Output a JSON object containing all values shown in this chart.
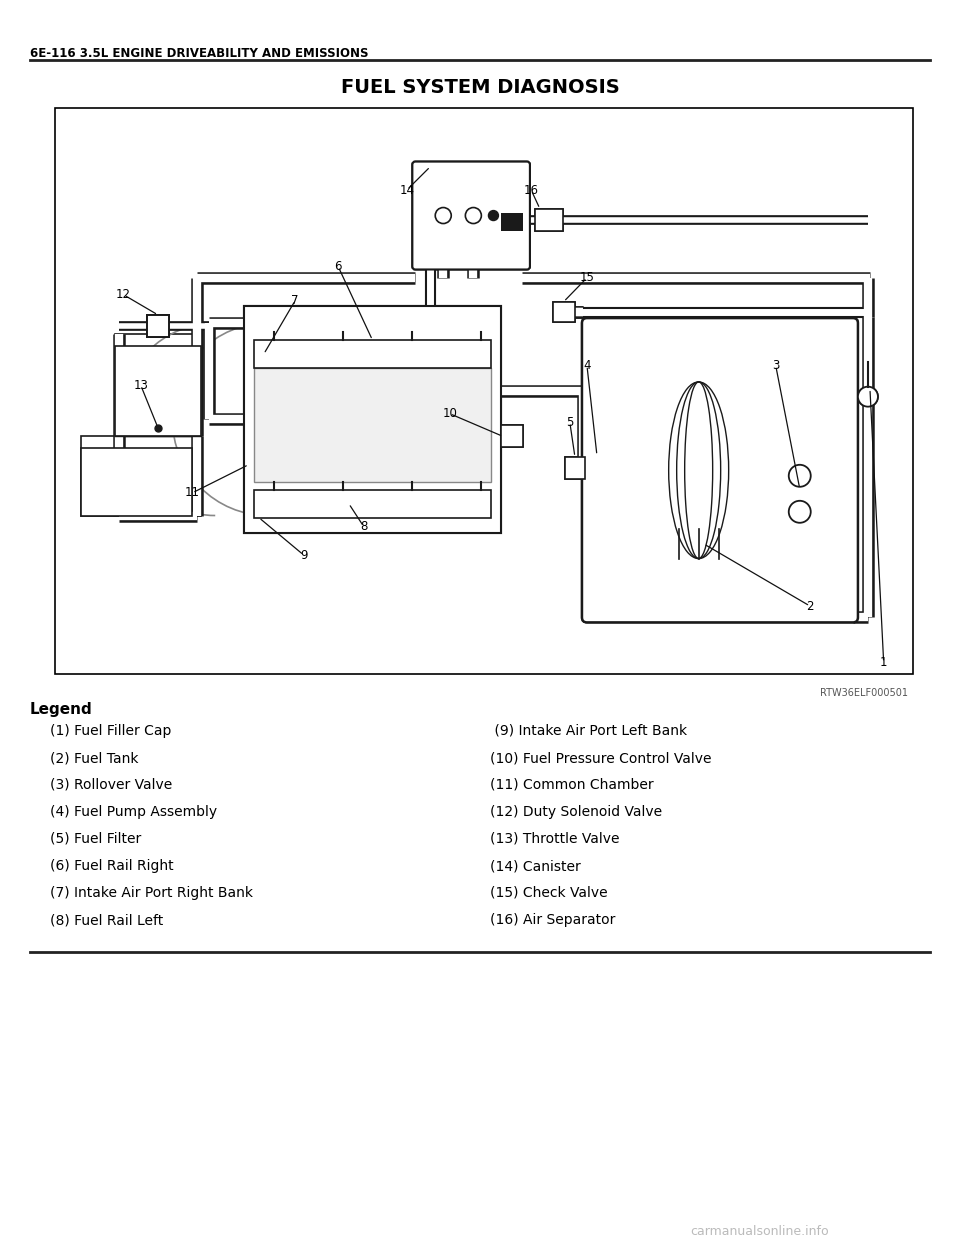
{
  "header_text": "6E-116 3.5L ENGINE DRIVEABILITY AND EMISSIONS",
  "title": "FUEL SYSTEM DIAGNOSIS",
  "diagram_ref": "RTW36ELF000501",
  "legend_title": "Legend",
  "legend_left": [
    "(1) Fuel Filler Cap",
    "(2) Fuel Tank",
    "(3) Rollover Valve",
    "(4) Fuel Pump Assembly",
    "(5) Fuel Filter",
    "(6) Fuel Rail Right",
    "(7) Intake Air Port Right Bank",
    "(8) Fuel Rail Left"
  ],
  "legend_right": [
    " (9) Intake Air Port Left Bank",
    "(10) Fuel Pressure Control Valve",
    "(11) Common Chamber",
    "(12) Duty Solenoid Valve",
    "(13) Throttle Valve",
    "(14) Canister",
    "(15) Check Valve",
    "(16) Air Separator"
  ],
  "bg_color": "#ffffff",
  "header_color": "#000000",
  "text_color": "#000000",
  "watermark_text": "carmanualsonline.info"
}
